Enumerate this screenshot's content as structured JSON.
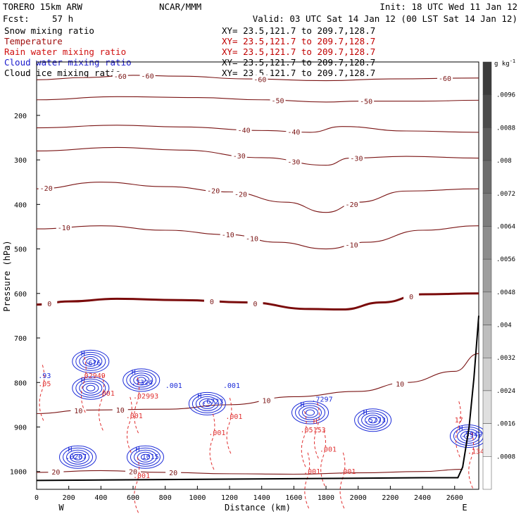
{
  "header": {
    "model": "TORERO  15km ARW",
    "center": "NCAR/MMM",
    "init": "Init: 18 UTC Wed 11 Jan 12",
    "fcst_label": "Fcst:",
    "fcst_value": "57 h",
    "valid": "Valid: 03 UTC Sat 14 Jan 12 (00 LST Sat 14 Jan 12)"
  },
  "fields": [
    {
      "name": "Snow mixing ratio",
      "xy": "XY=  23.5,121.7 to 209.7,128.7",
      "color": "#000000",
      "xy_color": "#000000"
    },
    {
      "name": "Temperature",
      "xy": "XY=  23.5,121.7 to 209.7,128.7",
      "color": "#a01010",
      "xy_color": "#c00000"
    },
    {
      "name": "Rain water mixing ratio",
      "xy": "XY=  23.5,121.7 to 209.7,128.7",
      "color": "#d01010",
      "xy_color": "#c00000"
    },
    {
      "name": "Cloud water mixing ratio",
      "xy": "XY=  23.5,121.7 to 209.7,128.7",
      "color": "#1a1acc",
      "xy_color": "#000000"
    },
    {
      "name": "Cloud ice mixing ratio",
      "xy": "XY=  23.5,121.7 to 209.7,128.7",
      "color": "#000000",
      "xy_color": "#000000"
    }
  ],
  "colors": {
    "temperature": "#7a1414",
    "zero_isotherm": "#7a0a0a",
    "rain": "#e03030",
    "cloud_water": "#1a2ad8",
    "terrain": "#000000"
  },
  "chart_data": {
    "type": "cross-section contour",
    "xlabel": "Distance (km)",
    "ylabel": "Pressure (hPa)",
    "xlim": [
      0,
      2750
    ],
    "ylim": [
      1040,
      80
    ],
    "x_ticks": [
      0,
      200,
      400,
      600,
      800,
      1000,
      1200,
      1400,
      1600,
      1800,
      2000,
      2200,
      2400,
      2600
    ],
    "y_ticks": [
      200,
      300,
      400,
      500,
      600,
      700,
      800,
      900,
      1000
    ],
    "direction_left": "W",
    "direction_right": "E",
    "colorbar": {
      "unit": "g kg",
      "unit_exp": "-1",
      "labels": [
        ".0096",
        ".0088",
        ".008",
        ".0072",
        ".0064",
        ".0056",
        ".0048",
        ".004",
        ".0032",
        ".0024",
        ".0016",
        ".0008"
      ]
    },
    "isotherms": [
      {
        "level": -60,
        "points": [
          [
            0,
            120
          ],
          [
            300,
            115
          ],
          [
            600,
            110
          ],
          [
            900,
            112
          ],
          [
            1300,
            118
          ],
          [
            1800,
            122
          ],
          [
            2200,
            118
          ],
          [
            2750,
            116
          ]
        ],
        "labels": [
          {
            "text": "-60",
            "x": 520
          },
          {
            "text": "-60",
            "x": 690
          },
          {
            "text": "-60",
            "x": 1390
          },
          {
            "text": "-60",
            "x": 2540
          }
        ]
      },
      {
        "level": -50,
        "points": [
          [
            0,
            165
          ],
          [
            500,
            158
          ],
          [
            1000,
            160
          ],
          [
            1400,
            165
          ],
          [
            1800,
            170
          ],
          [
            2000,
            168
          ],
          [
            2400,
            168
          ],
          [
            2750,
            166
          ]
        ],
        "labels": [
          {
            "text": "-50",
            "x": 1500
          },
          {
            "text": "-50",
            "x": 2050
          }
        ]
      },
      {
        "level": -40,
        "points": [
          [
            0,
            228
          ],
          [
            500,
            222
          ],
          [
            900,
            226
          ],
          [
            1400,
            234
          ],
          [
            1700,
            238
          ],
          [
            1900,
            225
          ],
          [
            2300,
            235
          ],
          [
            2750,
            238
          ]
        ],
        "labels": [
          {
            "text": "-40",
            "x": 1290
          },
          {
            "text": "-40",
            "x": 1600
          }
        ]
      },
      {
        "level": -30,
        "points": [
          [
            0,
            280
          ],
          [
            500,
            272
          ],
          [
            900,
            278
          ],
          [
            1400,
            295
          ],
          [
            1800,
            312
          ],
          [
            1950,
            296
          ],
          [
            2300,
            292
          ],
          [
            2750,
            296
          ]
        ],
        "labels": [
          {
            "text": "-30",
            "x": 1260
          },
          {
            "text": "-30",
            "x": 1600
          },
          {
            "text": "-30",
            "x": 1990
          }
        ]
      },
      {
        "level": -20,
        "points": [
          [
            0,
            365
          ],
          [
            400,
            350
          ],
          [
            800,
            360
          ],
          [
            1200,
            372
          ],
          [
            1550,
            395
          ],
          [
            1800,
            418
          ],
          [
            2000,
            395
          ],
          [
            2300,
            370
          ],
          [
            2750,
            365
          ]
        ],
        "labels": [
          {
            "text": "-20",
            "x": 60
          },
          {
            "text": "-20",
            "x": 1100
          },
          {
            "text": "-20",
            "x": 1270
          },
          {
            "text": "-20",
            "x": 1960
          }
        ]
      },
      {
        "level": -10,
        "points": [
          [
            0,
            455
          ],
          [
            400,
            448
          ],
          [
            800,
            458
          ],
          [
            1200,
            468
          ],
          [
            1500,
            485
          ],
          [
            1800,
            500
          ],
          [
            2050,
            485
          ],
          [
            2400,
            458
          ],
          [
            2750,
            448
          ]
        ],
        "labels": [
          {
            "text": "-10",
            "x": 170
          },
          {
            "text": "-10",
            "x": 1190
          },
          {
            "text": "-10",
            "x": 1340
          },
          {
            "text": "-10",
            "x": 1960
          }
        ]
      },
      {
        "level": 0,
        "points": [
          [
            0,
            625
          ],
          [
            200,
            618
          ],
          [
            500,
            612
          ],
          [
            900,
            615
          ],
          [
            1300,
            620
          ],
          [
            1700,
            635
          ],
          [
            1900,
            636
          ],
          [
            2150,
            620
          ],
          [
            2400,
            602
          ],
          [
            2750,
            600
          ]
        ],
        "labels": [
          {
            "text": "0",
            "x": 80
          },
          {
            "text": "0",
            "x": 1090
          },
          {
            "text": "0",
            "x": 1360
          },
          {
            "text": "0",
            "x": 2330
          }
        ]
      },
      {
        "level": 10,
        "points": [
          [
            0,
            870
          ],
          [
            300,
            862
          ],
          [
            800,
            860
          ],
          [
            1200,
            850
          ],
          [
            1600,
            832
          ],
          [
            2000,
            820
          ],
          [
            2300,
            800
          ],
          [
            2600,
            775
          ],
          [
            2750,
            735
          ]
        ],
        "labels": [
          {
            "text": "10",
            "x": 260
          },
          {
            "text": "10",
            "x": 520
          },
          {
            "text": "10",
            "x": 1430
          },
          {
            "text": "10",
            "x": 2260
          }
        ]
      },
      {
        "level": 20,
        "points": [
          [
            0,
            1002
          ],
          [
            400,
            998
          ],
          [
            800,
            1002
          ],
          [
            1200,
            1005
          ],
          [
            1600,
            1006
          ],
          [
            2000,
            1003
          ],
          [
            2400,
            1000
          ],
          [
            2650,
            995
          ]
        ],
        "labels": [
          {
            "text": "20",
            "x": 120
          },
          {
            "text": "20",
            "x": 600
          },
          {
            "text": "20",
            "x": 850
          }
        ]
      }
    ],
    "cloud_water_labels": [
      {
        "text": "H",
        "x": 275,
        "p": 740
      },
      {
        "text": ".676",
        "x": 295,
        "p": 762
      },
      {
        "text": "H",
        "x": 275,
        "p": 800
      },
      {
        "text": ".7324",
        "x": 590,
        "p": 805
      },
      {
        "text": "H",
        "x": 590,
        "p": 782
      },
      {
        "text": "H",
        "x": 1000,
        "p": 835
      },
      {
        "text": ".6723",
        "x": 1030,
        "p": 848
      },
      {
        "text": ".001",
        "x": 1160,
        "p": 812
      },
      {
        "text": "H",
        "x": 1640,
        "p": 855
      },
      {
        "text": ".7297",
        "x": 1710,
        "p": 843
      },
      {
        "text": "H",
        "x": 2030,
        "p": 872
      },
      {
        "text": ".5773",
        "x": 2040,
        "p": 890
      },
      {
        "text": "H",
        "x": 195,
        "p": 955
      },
      {
        "text": ".0207",
        "x": 180,
        "p": 972
      },
      {
        "text": "H",
        "x": 615,
        "p": 955
      },
      {
        "text": "1015",
        "x": 655,
        "p": 972
      },
      {
        "text": "H",
        "x": 2625,
        "p": 908
      },
      {
        "text": ".5949",
        "x": 2640,
        "p": 922
      },
      {
        "text": ".93",
        "x": 10,
        "p": 790
      },
      {
        "text": ".001",
        "x": 800,
        "p": 812
      }
    ],
    "rain_labels": [
      {
        "text": ".02949",
        "x": 270,
        "p": 790
      },
      {
        "text": ".001",
        "x": 380,
        "p": 830
      },
      {
        "text": ".02993",
        "x": 600,
        "p": 836
      },
      {
        "text": ".001",
        "x": 555,
        "p": 880
      },
      {
        "text": ".001",
        "x": 1070,
        "p": 918
      },
      {
        "text": ".001",
        "x": 1175,
        "p": 882
      },
      {
        "text": ".05153",
        "x": 1640,
        "p": 912
      },
      {
        "text": ".001",
        "x": 1760,
        "p": 955
      },
      {
        "text": ".001",
        "x": 1660,
        "p": 1005
      },
      {
        "text": ".001",
        "x": 1880,
        "p": 1005
      },
      {
        "text": ".001",
        "x": 600,
        "p": 1015
      },
      {
        "text": "17",
        "x": 2600,
        "p": 890
      },
      {
        "text": ".1348",
        "x": 2680,
        "p": 960
      },
      {
        "text": ".05",
        "x": 10,
        "p": 808
      },
      {
        "text": "H",
        "x": 1720,
        "p": 893
      }
    ],
    "terrain": [
      [
        0,
        1020
      ],
      [
        400,
        1019
      ],
      [
        800,
        1018
      ],
      [
        1200,
        1017
      ],
      [
        1600,
        1016
      ],
      [
        2000,
        1015
      ],
      [
        2400,
        1014
      ],
      [
        2620,
        1014
      ],
      [
        2650,
        990
      ],
      [
        2690,
        900
      ],
      [
        2720,
        790
      ],
      [
        2750,
        650
      ]
    ]
  }
}
